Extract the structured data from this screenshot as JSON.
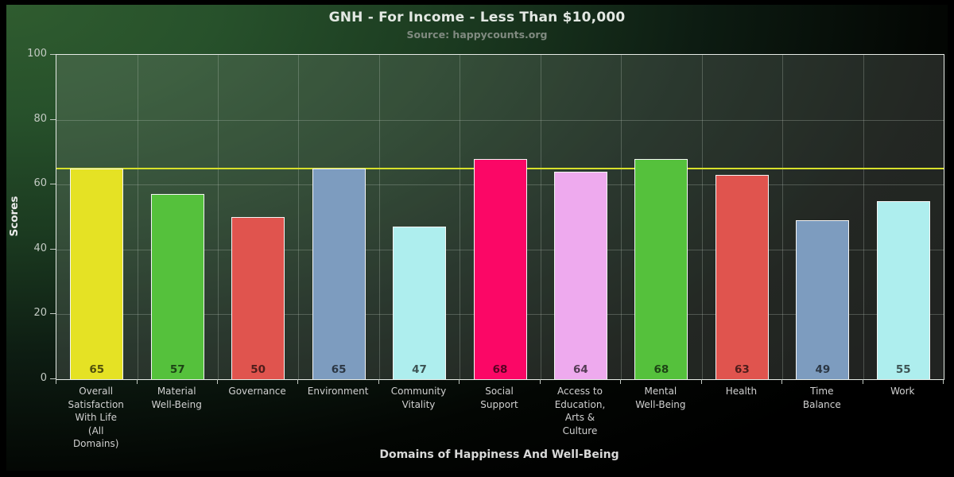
{
  "chart_data": {
    "type": "bar",
    "title": "GNH - For Income - Less Than $10,000",
    "subtitle": "Source: happycounts.org",
    "xlabel": "Domains of Happiness And Well-Being",
    "ylabel": "Scores",
    "ylim": [
      0,
      100
    ],
    "yticks": [
      0,
      20,
      40,
      60,
      80,
      100
    ],
    "grid": true,
    "legend": false,
    "reference_line": {
      "value": 65,
      "color": "#d7e02b"
    },
    "categories": [
      "Overall Satisfaction With Life (All Domains)",
      "Material Well-Being",
      "Governance",
      "Environment",
      "Community Vitality",
      "Social Support",
      "Access to Education, Arts & Culture",
      "Mental Well-Being",
      "Health",
      "Time Balance",
      "Work"
    ],
    "category_label_lines": [
      [
        "Overall",
        "Satisfaction",
        "With Life",
        "(All",
        "Domains)"
      ],
      [
        "Material",
        "Well-Being"
      ],
      [
        "Governance"
      ],
      [
        "Environment"
      ],
      [
        "Community",
        "Vitality"
      ],
      [
        "Social",
        "Support"
      ],
      [
        "Access to",
        "Education,",
        "Arts &",
        "Culture"
      ],
      [
        "Mental",
        "Well-Being"
      ],
      [
        "Health"
      ],
      [
        "Time",
        "Balance"
      ],
      [
        "Work"
      ]
    ],
    "values": [
      65,
      57,
      50,
      65,
      47,
      68,
      64,
      68,
      63,
      49,
      55
    ],
    "bar_colors": [
      "#e5e224",
      "#55c13c",
      "#e0544e",
      "#7d9cbf",
      "#aeeeee",
      "#fb0766",
      "#eeaaee",
      "#55c13c",
      "#e0544e",
      "#7d9cbf",
      "#aeeeee"
    ],
    "value_label_color": "rgba(0,0,0,0.65)"
  }
}
